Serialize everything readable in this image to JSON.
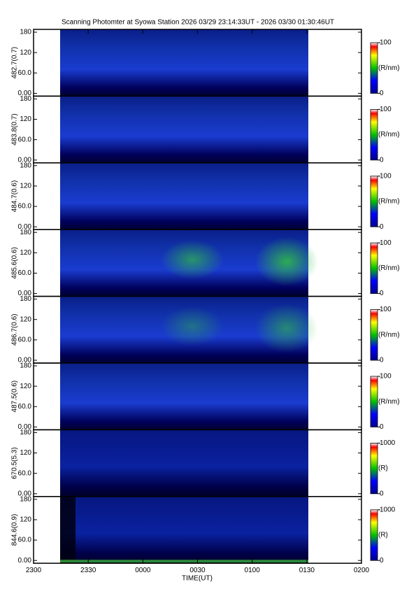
{
  "title": "Scanning Photomter at Syowa Station 2026 03/29 23:14:33UT - 2026 03/30 01:30:46UT",
  "x_axis": {
    "label": "TIME(UT)",
    "ticks": [
      "2300",
      "2330",
      "0000",
      "0030",
      "0100",
      "0130",
      "0200"
    ]
  },
  "chart_data": [
    {
      "type": "heatmap",
      "ylabel": "482.7(0.7)",
      "ylim": [
        0,
        180
      ],
      "yticks": [
        {
          "value": 0,
          "label": "0.00"
        },
        {
          "value": 60,
          "label": "60.0"
        },
        120,
        180
      ],
      "colorbar": {
        "lim": [
          0,
          100
        ],
        "ticks": [
          0,
          100
        ],
        "label": "(R/nm)"
      }
    },
    {
      "type": "heatmap",
      "ylabel": "483.8(0.7)",
      "ylim": [
        0,
        180
      ],
      "yticks": [
        {
          "value": 0,
          "label": "0.00"
        },
        {
          "value": 60,
          "label": "60.0"
        },
        120,
        180
      ],
      "colorbar": {
        "lim": [
          0,
          100
        ],
        "ticks": [
          0,
          100
        ],
        "label": "(R/nm)"
      }
    },
    {
      "type": "heatmap",
      "ylabel": "484.7(0.6)",
      "ylim": [
        0,
        180
      ],
      "yticks": [
        {
          "value": 0,
          "label": "0.00"
        },
        {
          "value": 60,
          "label": "60.0"
        },
        120,
        180
      ],
      "colorbar": {
        "lim": [
          0,
          100
        ],
        "ticks": [
          0,
          100
        ],
        "label": "(R/nm)"
      }
    },
    {
      "type": "heatmap",
      "ylabel": "485.6(0.6)",
      "ylim": [
        0,
        180
      ],
      "yticks": [
        {
          "value": 0,
          "label": "0.00"
        },
        {
          "value": 60,
          "label": "60.0"
        },
        120,
        180
      ],
      "colorbar": {
        "lim": [
          0,
          100
        ],
        "ticks": [
          0,
          100
        ],
        "label": "(R/nm)"
      }
    },
    {
      "type": "heatmap",
      "ylabel": "486.7(0.6)",
      "ylim": [
        0,
        180
      ],
      "yticks": [
        {
          "value": 0,
          "label": "0.00"
        },
        {
          "value": 60,
          "label": "60.0"
        },
        120,
        180
      ],
      "colorbar": {
        "lim": [
          0,
          100
        ],
        "ticks": [
          0,
          100
        ],
        "label": "(R/nm)"
      }
    },
    {
      "type": "heatmap",
      "ylabel": "487.5(0.6)",
      "ylim": [
        0,
        180
      ],
      "yticks": [
        {
          "value": 0,
          "label": "0.00"
        },
        {
          "value": 60,
          "label": "60.0"
        },
        120,
        180
      ],
      "colorbar": {
        "lim": [
          0,
          100
        ],
        "ticks": [
          0,
          100
        ],
        "label": "(R/nm)"
      }
    },
    {
      "type": "heatmap",
      "ylabel": "670.5(5.3)",
      "ylim": [
        0,
        180
      ],
      "yticks": [
        {
          "value": 0,
          "label": "0.00"
        },
        {
          "value": 60,
          "label": "60.0"
        },
        120,
        180
      ],
      "colorbar": {
        "lim": [
          0,
          1000
        ],
        "ticks": [
          0,
          1000
        ],
        "label": "(R)"
      }
    },
    {
      "type": "heatmap",
      "ylabel": "844.6(0.9)",
      "ylim": [
        0,
        180
      ],
      "yticks": [
        {
          "value": 0,
          "label": "0.00"
        },
        {
          "value": 60,
          "label": "60.0"
        },
        120,
        180
      ],
      "colorbar": {
        "lim": [
          0,
          1000
        ],
        "ticks": [
          0,
          1000
        ],
        "label": "(R)"
      }
    }
  ]
}
